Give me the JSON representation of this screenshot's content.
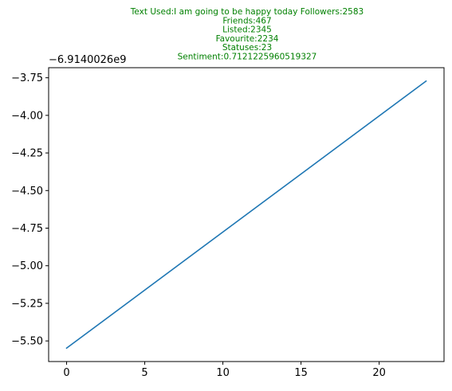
{
  "colors": {
    "title": "#008000",
    "line": "#1f77b4",
    "axis": "#000000",
    "background": "#ffffff"
  },
  "chart_data": {
    "type": "line",
    "title_lines": [
      "Text Used:I am going to be happy today Followers:2583",
      "Friends:467",
      "Listed:2345",
      "Favourite:2234",
      "Statuses:23",
      "Sentiment:0.7121225960519327"
    ],
    "xlabel": "",
    "ylabel": "",
    "y_offset_text": "−6.9140026e9",
    "x_ticks": [
      0,
      5,
      10,
      15,
      20
    ],
    "x_tick_labels": [
      "0",
      "5",
      "10",
      "15",
      "20"
    ],
    "y_ticks": [
      -5.5,
      -5.25,
      -5.0,
      -4.75,
      -4.5,
      -4.25,
      -4.0,
      -3.75
    ],
    "y_tick_labels": [
      "−5.50",
      "−5.25",
      "−5.00",
      "−4.75",
      "−4.50",
      "−4.25",
      "−4.00",
      "−3.75"
    ],
    "xlim": [
      -1.15,
      24.15
    ],
    "ylim": [
      -5.637,
      -3.683
    ],
    "grid": false,
    "legend": "none",
    "series": [
      {
        "x": [
          0,
          23
        ],
        "y": [
          -5.548,
          -3.772
        ]
      }
    ]
  }
}
